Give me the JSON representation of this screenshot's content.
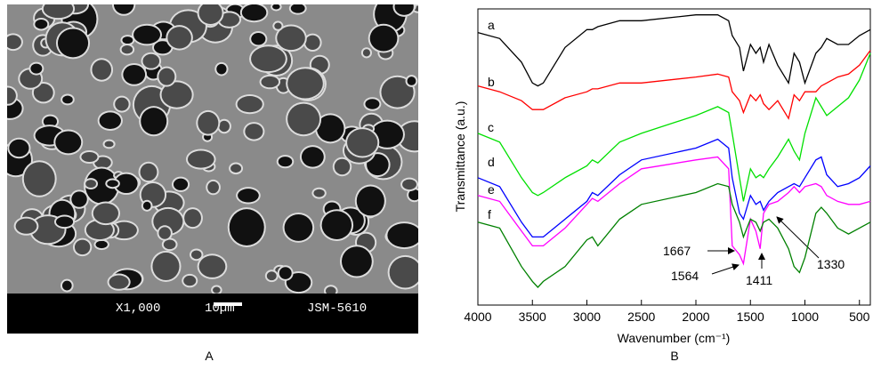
{
  "image_panel": {
    "magnification": "X1,000",
    "scale_bar": "10µm",
    "instrument": "JSM-5610",
    "label": "A"
  },
  "chart_data": {
    "type": "line",
    "panel_label": "B",
    "x_label": "Wavenumber (cm⁻¹)",
    "y_label": "Transmittance (a.u.)",
    "xlim": [
      4000,
      400
    ],
    "xticks": [
      4000,
      3500,
      3000,
      2500,
      2000,
      1500,
      1000,
      500
    ],
    "ylim": [
      0,
      100
    ],
    "x": [
      4000,
      3800,
      3600,
      3500,
      3450,
      3400,
      3200,
      3000,
      2950,
      2900,
      2700,
      2500,
      2000,
      1800,
      1700,
      1667,
      1600,
      1564,
      1500,
      1450,
      1411,
      1380,
      1330,
      1250,
      1150,
      1100,
      1050,
      1000,
      900,
      850,
      800,
      700,
      600,
      500,
      400
    ],
    "series": [
      {
        "name": "a",
        "color": "#000000",
        "values": [
          92,
          90,
          82,
          75,
          74,
          75,
          87,
          93,
          93,
          94,
          96,
          96,
          98,
          98,
          96,
          91,
          87,
          79,
          88,
          85,
          87,
          82,
          88,
          81,
          75,
          85,
          82,
          75,
          85,
          87,
          90,
          88,
          88,
          91,
          93
        ]
      },
      {
        "name": "b",
        "color": "#ff0000",
        "values": [
          74,
          72,
          69,
          66,
          66,
          66,
          70,
          72,
          73,
          73,
          75,
          75,
          77,
          78,
          77,
          72,
          69,
          65,
          71,
          69,
          71,
          68,
          66,
          69,
          63,
          71,
          69,
          72,
          72,
          74,
          75,
          77,
          78,
          81,
          86
        ]
      },
      {
        "name": "c",
        "color": "#00e000",
        "values": [
          58,
          55,
          43,
          38,
          37,
          38,
          43,
          47,
          49,
          48,
          55,
          58,
          64,
          67,
          65,
          58,
          43,
          35,
          46,
          43,
          44,
          43,
          46,
          50,
          56,
          52,
          49,
          58,
          70,
          67,
          64,
          67,
          70,
          76,
          85
        ]
      },
      {
        "name": "d",
        "color": "#0000ff",
        "values": [
          43,
          40,
          28,
          23,
          23,
          23,
          29,
          35,
          38,
          37,
          44,
          49,
          53,
          56,
          53,
          43,
          31,
          29,
          37,
          34,
          35,
          32,
          35,
          38,
          40,
          41,
          40,
          43,
          49,
          50,
          44,
          40,
          41,
          43,
          47
        ]
      },
      {
        "name": "e",
        "color": "#ff00ff",
        "values": [
          37,
          35,
          25,
          20,
          20,
          20,
          26,
          34,
          36,
          35,
          41,
          46,
          49,
          50,
          46,
          20,
          17,
          14,
          29,
          25,
          19,
          31,
          34,
          35,
          38,
          40,
          38,
          40,
          41,
          40,
          37,
          35,
          34,
          34,
          35
        ]
      },
      {
        "name": "f",
        "color": "#008000",
        "values": [
          28,
          26,
          13,
          8,
          6,
          8,
          13,
          22,
          23,
          20,
          29,
          34,
          38,
          41,
          40,
          34,
          28,
          23,
          29,
          28,
          25,
          28,
          29,
          26,
          19,
          13,
          11,
          16,
          31,
          33,
          31,
          26,
          24,
          26,
          28
        ]
      }
    ],
    "annotations": [
      "1667",
      "1564",
      "1411",
      "1330"
    ]
  }
}
